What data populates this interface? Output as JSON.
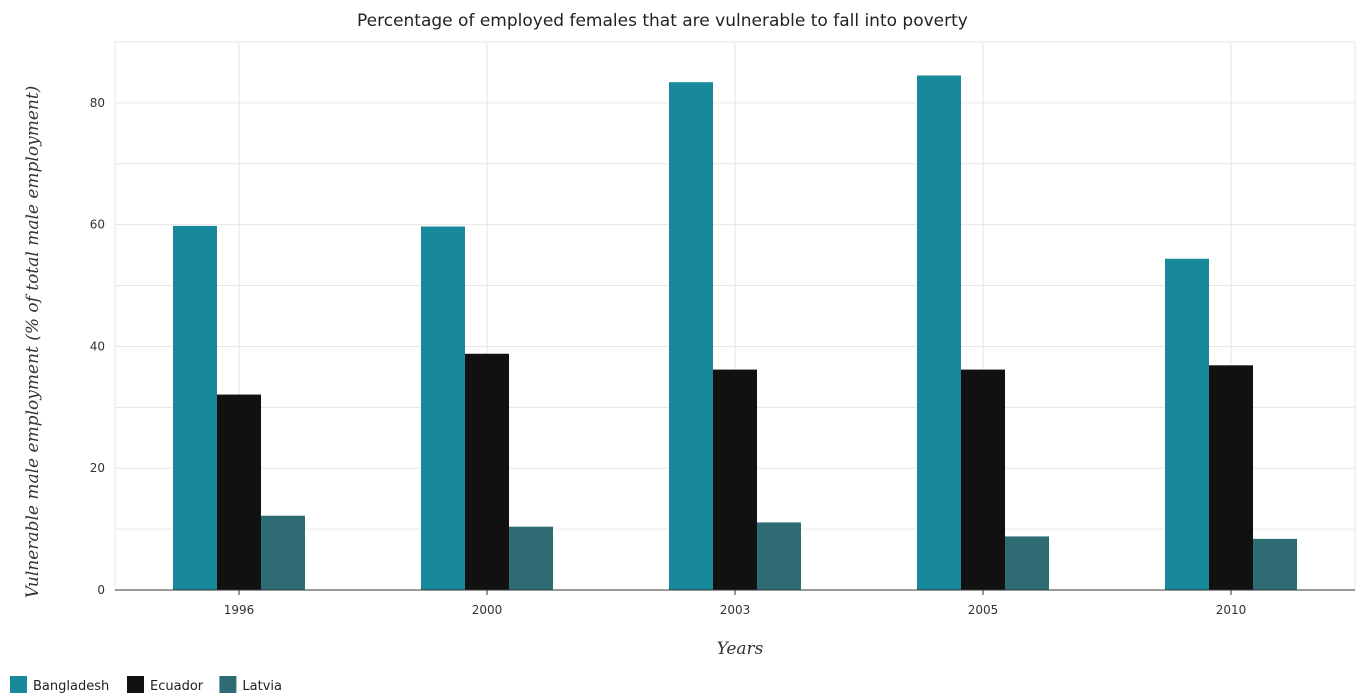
{
  "chart_data": {
    "type": "bar",
    "title": "Percentage of employed females that are vulnerable to fall into poverty",
    "xlabel": "Years",
    "ylabel": "Vulnerable male employment (% of total male employment)",
    "categories": [
      "1996",
      "2000",
      "2003",
      "2005",
      "2010"
    ],
    "series": [
      {
        "name": "Bangladesh",
        "color": "#17899a",
        "values": [
          59.8,
          59.7,
          83.4,
          84.5,
          54.4
        ]
      },
      {
        "name": "Ecuador",
        "color": "#111111",
        "values": [
          32.1,
          38.8,
          36.2,
          36.2,
          36.9
        ]
      },
      {
        "name": "Latvia",
        "color": "#2e6b72",
        "values": [
          12.2,
          10.4,
          11.1,
          8.8,
          8.4
        ]
      }
    ],
    "ylim": [
      0,
      90
    ],
    "yticks": [
      0,
      20,
      40,
      60,
      80
    ],
    "grid": true,
    "legend_position": "bottom-left"
  }
}
